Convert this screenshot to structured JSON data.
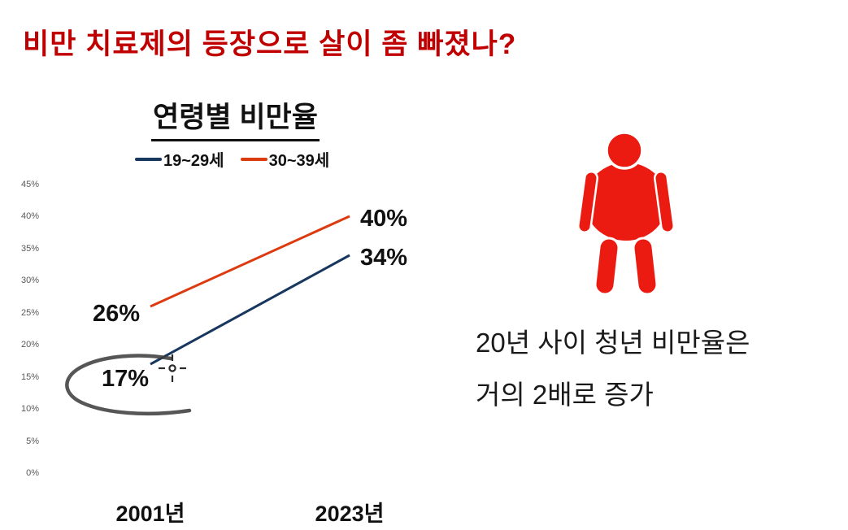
{
  "header": {
    "title": "비만 치료제의 등장으로 살이 좀 빠졌나?",
    "title_color": "#C00000"
  },
  "chart_data": {
    "type": "line",
    "title": "연령별 비만율",
    "categories": [
      "2001년",
      "2023년"
    ],
    "series": [
      {
        "name": "19~29세",
        "color": "#17375E",
        "values": [
          17,
          34
        ],
        "data_labels": [
          "17%",
          "34%"
        ]
      },
      {
        "name": "30~39세",
        "color": "#DC3A0F",
        "values": [
          26,
          40
        ],
        "data_labels": [
          "26%",
          "40%"
        ]
      }
    ],
    "yticks": [
      45,
      40,
      35,
      30,
      25,
      20,
      15,
      10,
      5,
      0
    ],
    "ytick_format": "{v}%",
    "ylim": [
      0,
      47
    ],
    "grid": false,
    "legend_position": "top",
    "annotations": [
      "hand-drawn-ellipse-around-17%",
      "precision-crosshair-cursor-near-17%"
    ]
  },
  "aside": {
    "icon": "obese-person-icon",
    "icon_color": "#EC1B12",
    "caption_line1": "20년 사이 청년 비만율은",
    "caption_line2": "거의 2배로 증가"
  }
}
